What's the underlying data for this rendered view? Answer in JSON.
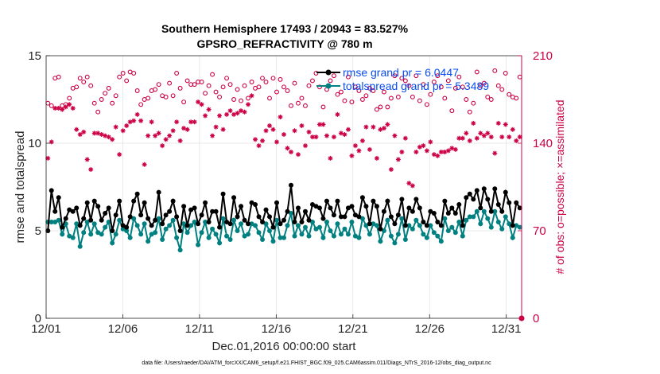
{
  "chart_data": {
    "type": "line",
    "title_line1": "Southern Hemisphere 17493 / 20943 = 83.527%",
    "title_line2": "GPSRO_REFRACTIVITY @ 780 m",
    "xlabel": "Dec.01,2016 00:00:00 start",
    "ylabel_left": "rmse and totalspread",
    "ylabel_right": "# of obs: o=possible; ×=assimilated",
    "x_ticks": [
      "12/01",
      "12/06",
      "12/11",
      "12/16",
      "12/21",
      "12/26",
      "12/31"
    ],
    "x_tick_days": [
      0,
      5,
      10,
      15,
      20,
      25,
      30
    ],
    "xlim": [
      0,
      31
    ],
    "y_left_ticks": [
      "0",
      "5",
      "10",
      "15"
    ],
    "y_left_lim": [
      0,
      15
    ],
    "y_right_ticks": [
      "0",
      "70",
      "140",
      "210"
    ],
    "y_right_lim": [
      0,
      210
    ],
    "footer": "data file: /Users/raeder/DAI/ATM_forcXX/CAM6_setup/f.e21.FHIST_BGC.f09_025.CAM6assim.011/Diags_NTrS_2016-12/obs_diag_output.nc",
    "legend": [
      {
        "label": "rmse grand pr = 6.0447",
        "color": "#000000"
      },
      {
        "label": "totalspread grand pr = 5.3489",
        "color": "#008080"
      }
    ],
    "colors": {
      "rmse": "#000000",
      "spread": "#008080",
      "obs": "#cc0044",
      "axis_right": "#cc0044"
    },
    "series": [
      {
        "name": "rmse",
        "values": [
          5.0,
          7.3,
          6.1,
          6.9,
          5.2,
          5.7,
          6.2,
          6.1,
          6.3,
          5.3,
          5.7,
          6.6,
          5.6,
          6.7,
          6.4,
          5.6,
          6.0,
          6.3,
          5.0,
          5.9,
          6.7,
          5.3,
          5.2,
          5.8,
          6.7,
          7.1,
          5.9,
          6.6,
          5.7,
          5.3,
          5.6,
          7.2,
          5.4,
          5.9,
          6.1,
          6.7,
          5.8,
          5.0,
          6.4,
          5.3,
          6.2,
          6.3,
          5.4,
          5.9,
          6.6,
          5.5,
          6.1,
          6.1,
          5.2,
          7.1,
          5.5,
          5.4,
          6.9,
          5.8,
          6.4,
          5.6,
          5.4,
          6.6,
          6.5,
          5.8,
          5.5,
          6.2,
          5.8,
          5.2,
          6.6,
          5.4,
          5.6,
          6.1,
          7.6,
          5.5,
          6.3,
          5.5,
          6.1,
          5.6,
          6.5,
          6.4,
          6.3,
          5.7,
          6.7,
          6.3,
          5.9,
          6.7,
          5.8,
          5.8,
          6.3,
          6.4,
          5.9,
          5.8,
          6.9,
          6.4,
          5.4,
          6.7,
          6.4,
          5.1,
          6.1,
          6.7,
          5.8,
          5.4,
          5.9,
          6.8,
          5.3,
          6.3,
          6.1,
          6.8,
          6.3,
          5.5,
          5.3,
          6.1,
          6.0,
          5.5,
          5.3,
          6.7,
          6.0,
          6.3,
          6.0,
          6.5,
          5.3,
          6.9,
          7.1,
          6.8,
          7.3,
          6.3,
          7.4,
          6.8,
          6.1,
          7.4,
          6.5,
          6.1,
          7.2,
          6.6,
          5.3,
          6.6,
          6.3
        ]
      },
      {
        "name": "totalspread",
        "values": [
          5.5,
          5.5,
          5.5,
          5.6,
          4.8,
          5.4,
          4.7,
          4.6,
          5.4,
          4.1,
          4.9,
          5.5,
          4.8,
          5.4,
          4.9,
          4.8,
          5.2,
          5.5,
          4.3,
          4.8,
          5.6,
          5.1,
          5.0,
          4.6,
          5.7,
          5.3,
          4.8,
          5.4,
          4.4,
          4.8,
          4.9,
          5.7,
          4.5,
          5.1,
          5.3,
          5.6,
          4.6,
          3.9,
          5.4,
          4.9,
          5.3,
          5.5,
          4.2,
          4.9,
          5.5,
          4.6,
          5.1,
          4.8,
          4.3,
          5.7,
          4.7,
          4.5,
          5.6,
          5.0,
          5.4,
          4.7,
          4.8,
          5.4,
          5.3,
          4.9,
          4.5,
          5.4,
          5.0,
          4.4,
          5.6,
          4.6,
          4.6,
          5.3,
          6.0,
          4.7,
          5.3,
          4.8,
          5.2,
          4.7,
          5.5,
          5.1,
          5.2,
          4.6,
          5.5,
          5.0,
          4.7,
          5.4,
          4.8,
          5.1,
          4.8,
          5.5,
          4.7,
          4.6,
          5.7,
          5.3,
          4.8,
          5.4,
          5.3,
          4.4,
          5.0,
          5.6,
          4.7,
          4.3,
          4.8,
          5.7,
          4.5,
          5.3,
          5.1,
          5.6,
          5.3,
          4.8,
          4.6,
          5.3,
          4.9,
          4.7,
          4.4,
          5.7,
          5.0,
          5.2,
          4.9,
          5.5,
          4.7,
          5.6,
          5.8,
          5.8,
          6.1,
          5.4,
          6.1,
          5.7,
          5.2,
          6.1,
          5.5,
          5.1,
          5.8,
          5.4,
          4.6,
          5.3,
          5.2
        ]
      },
      {
        "name": "obs_possible",
        "values": [
          172,
          170,
          192,
          193,
          170,
          171,
          176,
          184,
          185,
          192,
          189,
          193,
          186,
          172,
          165,
          175,
          180,
          184,
          172,
          178,
          193,
          196,
          190,
          197,
          196,
          182,
          171,
          175,
          176,
          182,
          183,
          187,
          178,
          177,
          188,
          178,
          196,
          184,
          173,
          190,
          187,
          187,
          189,
          189,
          180,
          186,
          195,
          181,
          177,
          185,
          192,
          187,
          175,
          183,
          174,
          186,
          176,
          189,
          184,
          185,
          192,
          189,
          176,
          192,
          181,
          191,
          185,
          182,
          170,
          188,
          172,
          176,
          170,
          186,
          190,
          196,
          185,
          169,
          183,
          190,
          194,
          179,
          181,
          174,
          193,
          173,
          185,
          182,
          175,
          178,
          184,
          182,
          167,
          169,
          181,
          169,
          176,
          194,
          177,
          192,
          190,
          186,
          177,
          194,
          174,
          187,
          171,
          179,
          189,
          194,
          185,
          176,
          190,
          166,
          184,
          193,
          185,
          175,
          165,
          172,
          197,
          186,
          188,
          177,
          175,
          198,
          186,
          183,
          196,
          179,
          177,
          176,
          193
        ]
      },
      {
        "name": "obs_assimilated",
        "values": [
          128,
          141,
          168,
          168,
          167,
          169,
          171,
          168,
          151,
          147,
          149,
          127,
          119,
          148,
          148,
          147,
          146,
          145,
          143,
          153,
          131,
          150,
          154,
          157,
          158,
          163,
          158,
          123,
          146,
          157,
          146,
          148,
          138,
          143,
          146,
          150,
          157,
          142,
          152,
          151,
          157,
          157,
          173,
          171,
          162,
          167,
          146,
          153,
          162,
          151,
          163,
          166,
          163,
          164,
          166,
          165,
          171,
          178,
          143,
          138,
          142,
          150,
          154,
          151,
          141,
          161,
          147,
          136,
          133,
          150,
          131,
          154,
          138,
          149,
          145,
          145,
          155,
          155,
          146,
          128,
          145,
          163,
          148,
          147,
          151,
          130,
          138,
          134,
          142,
          153,
          135,
          153,
          128,
          151,
          152,
          155,
          119,
          146,
          127,
          133,
          144,
          108,
          106,
          133,
          137,
          138,
          134,
          141,
          131,
          130,
          133,
          133,
          134,
          136,
          135,
          144,
          144,
          148,
          142,
          156,
          144,
          148,
          146,
          148,
          145,
          132,
          156,
          145,
          155,
          145,
          151,
          142,
          145
        ]
      }
    ]
  }
}
